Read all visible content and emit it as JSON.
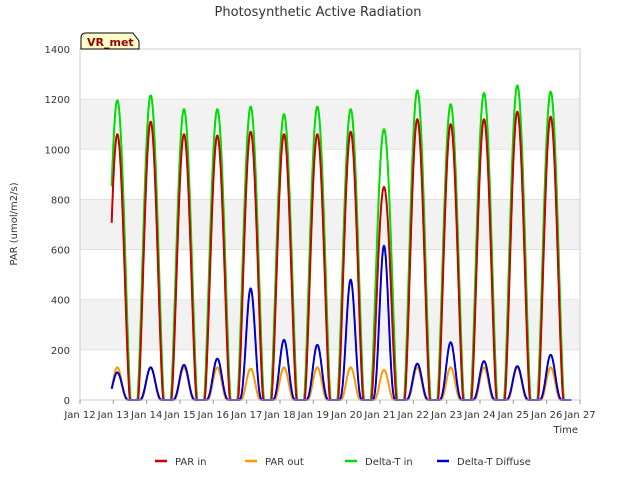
{
  "chart_data": {
    "type": "line",
    "title": "Photosynthetic Active Radiation",
    "xlabel": "Time",
    "ylabel": "PAR (umol/m2/s)",
    "ylim": [
      0,
      1400
    ],
    "yticks": [
      0,
      200,
      400,
      600,
      800,
      1000,
      1200,
      1400
    ],
    "xlim": [
      12,
      27
    ],
    "xtick_values": [
      12,
      13,
      14,
      15,
      16,
      17,
      18,
      19,
      20,
      21,
      22,
      23,
      24,
      25,
      26,
      27
    ],
    "xtick_labels": [
      "Jan 12",
      "Jan 13",
      "Jan 14",
      "Jan 15",
      "Jan 16",
      "Jan 17",
      "Jan 18",
      "Jan 19",
      "Jan 20",
      "Jan 21",
      "Jan 22",
      "Jan 23",
      "Jan 24",
      "Jan 25",
      "Jan 26",
      "Jan 27"
    ],
    "annotation": "VR_met",
    "legend_position": "bottom",
    "series": [
      {
        "name": "PAR in",
        "color": "#cc0000",
        "noon_day": [
          13,
          14,
          15,
          16,
          17,
          18,
          19,
          20,
          21,
          22,
          23,
          24,
          25,
          26
        ],
        "peaks": [
          1060,
          1110,
          1060,
          1055,
          1070,
          1060,
          1060,
          1070,
          850,
          1120,
          1100,
          1120,
          1150,
          1130
        ]
      },
      {
        "name": "PAR out",
        "color": "#ff9900",
        "noon_day": [
          13,
          14,
          15,
          16,
          17,
          18,
          19,
          20,
          21,
          22,
          23,
          24,
          25,
          26
        ],
        "peaks": [
          130,
          130,
          130,
          130,
          125,
          130,
          130,
          130,
          120,
          130,
          130,
          130,
          130,
          130
        ]
      },
      {
        "name": "Delta-T in",
        "color": "#00dd00",
        "noon_day": [
          13,
          14,
          15,
          16,
          17,
          18,
          19,
          20,
          21,
          22,
          23,
          24,
          25,
          26
        ],
        "peaks": [
          1195,
          1215,
          1160,
          1160,
          1170,
          1140,
          1170,
          1160,
          1080,
          1235,
          1180,
          1225,
          1255,
          1230
        ]
      },
      {
        "name": "Delta-T Diffuse",
        "color": "#0000cc",
        "noon_day": [
          13,
          14,
          15,
          16,
          17,
          18,
          19,
          20,
          21,
          22,
          23,
          24,
          25,
          26
        ],
        "peaks": [
          110,
          130,
          140,
          165,
          445,
          240,
          220,
          480,
          615,
          145,
          230,
          155,
          135,
          180
        ]
      }
    ]
  }
}
